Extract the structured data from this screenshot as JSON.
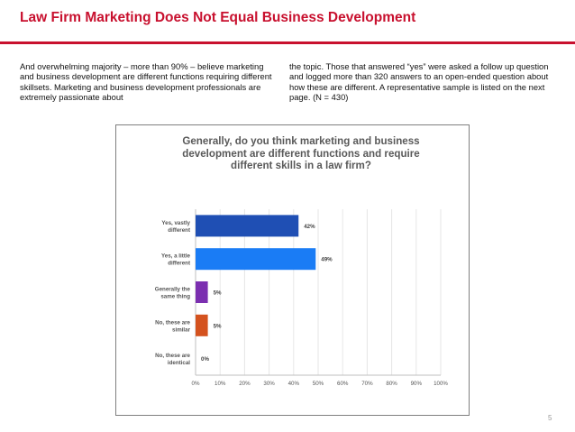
{
  "slide": {
    "title": "Law Firm Marketing Does Not Equal Business Development",
    "paragraph_left": "And overwhelming majority – more than 90% – believe marketing and business development are different functions requiring different skillsets.  Marketing and business development professionals are extremely passionate about",
    "paragraph_right": "the topic.  Those that answered “yes” were asked a follow up question and logged more than 320 answers to an open-ended question about how these are different.  A representative sample is listed on the next page.  (N = 430)",
    "page_number": "5"
  },
  "colors": {
    "title_red": "#c8102e",
    "bar_dark_blue": "#1f4fb4",
    "bar_bright_blue": "#1a7cf5",
    "bar_purple": "#7b2fb0",
    "bar_orange": "#d4521e"
  },
  "chart_data": {
    "type": "bar",
    "orientation": "horizontal",
    "title": "Generally, do you think marketing and business development are different functions and require different skills in a law firm?",
    "categories": [
      "Yes, vastly different",
      "Yes, a little different",
      "Generally the same thing",
      "No, these are similar",
      "No, these are identical"
    ],
    "category_lines": [
      [
        "Yes, vastly",
        "different"
      ],
      [
        "Yes, a little",
        "different"
      ],
      [
        "Generally the",
        "same thing"
      ],
      [
        "No, these are",
        "similar"
      ],
      [
        "No, these are",
        "identical"
      ]
    ],
    "values": [
      42,
      49,
      5,
      5,
      0
    ],
    "value_labels": [
      "42%",
      "49%",
      "5%",
      "5%",
      "0%"
    ],
    "bar_colors": [
      "#1f4fb4",
      "#1a7cf5",
      "#7b2fb0",
      "#d4521e",
      "#d4521e"
    ],
    "xlim": [
      0,
      100
    ],
    "xticks": [
      0,
      10,
      20,
      30,
      40,
      50,
      60,
      70,
      80,
      90,
      100
    ],
    "xtick_labels": [
      "0%",
      "10%",
      "20%",
      "30%",
      "40%",
      "50%",
      "60%",
      "70%",
      "80%",
      "90%",
      "100%"
    ],
    "grid": true,
    "legend": "none"
  }
}
